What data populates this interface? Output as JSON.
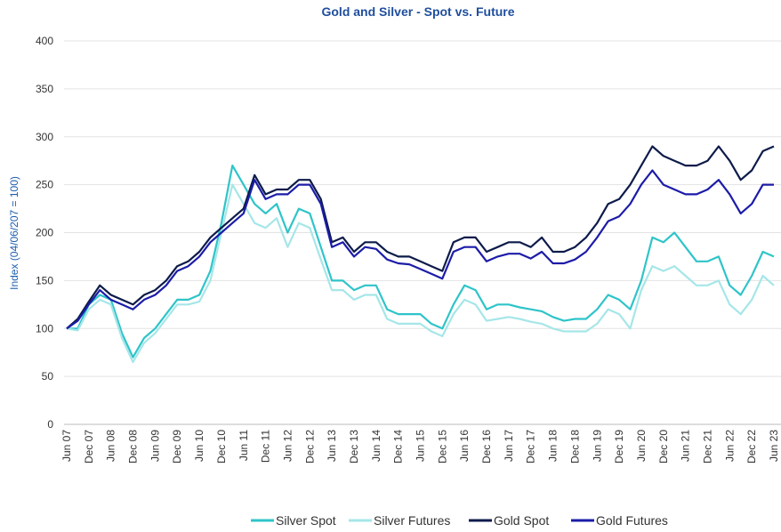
{
  "chart_data": {
    "type": "line",
    "title": "Gold and Silver  - Spot vs. Future",
    "y_label": "Index (04/06/207 = 100)",
    "categories": [
      "Jun 07",
      null,
      "Dec 07",
      null,
      "Jun 08",
      null,
      "Dec 08",
      null,
      "Jun 09",
      null,
      "Dec 09",
      null,
      "Jun 10",
      null,
      "Dec 10",
      null,
      "Jun 11",
      null,
      "Dec 11",
      null,
      "Jun 12",
      null,
      "Dec 12",
      null,
      "Jun 13",
      null,
      "Dec 13",
      null,
      "Jun 14",
      null,
      "Dec 14",
      null,
      "Jun 15",
      null,
      "Dec 15",
      null,
      "Jun 16",
      null,
      "Dec 16",
      null,
      "Jun 17",
      null,
      "Dec 17",
      null,
      "Jun 18",
      null,
      "Dec 18",
      null,
      "Jun 19",
      null,
      "Dec 19",
      null,
      "Jun 20",
      null,
      "Dec 20",
      null,
      "Jun 21",
      null,
      "Dec 21",
      null,
      "Jun 22",
      null,
      "Dec 22",
      null,
      "Jun 23"
    ],
    "series": [
      {
        "name": "Silver Spot",
        "color": "#2ec4c9",
        "values": [
          100,
          100,
          125,
          135,
          130,
          95,
          70,
          90,
          100,
          115,
          130,
          130,
          135,
          160,
          210,
          270,
          250,
          230,
          220,
          230,
          200,
          225,
          220,
          185,
          150,
          150,
          140,
          145,
          145,
          120,
          115,
          115,
          115,
          105,
          100,
          125,
          145,
          140,
          120,
          125,
          125,
          122,
          120,
          118,
          112,
          108,
          110,
          110,
          120,
          135,
          130,
          120,
          150,
          195,
          190,
          200,
          185,
          170,
          170,
          175,
          145,
          135,
          155,
          180,
          175
        ]
      },
      {
        "name": "Silver Futures",
        "color": "#a6e6e8",
        "values": [
          100,
          98,
          120,
          130,
          125,
          90,
          65,
          85,
          95,
          110,
          125,
          125,
          128,
          150,
          200,
          250,
          230,
          210,
          205,
          215,
          185,
          210,
          205,
          172,
          140,
          140,
          130,
          135,
          135,
          110,
          105,
          105,
          105,
          97,
          92,
          115,
          130,
          125,
          108,
          110,
          112,
          110,
          107,
          105,
          100,
          97,
          97,
          97,
          105,
          120,
          115,
          100,
          140,
          165,
          160,
          165,
          155,
          145,
          145,
          150,
          125,
          115,
          130,
          155,
          145
        ]
      },
      {
        "name": "Gold Spot",
        "color": "#0d1b4a",
        "values": [
          100,
          110,
          128,
          145,
          135,
          130,
          125,
          135,
          140,
          150,
          165,
          170,
          180,
          195,
          205,
          215,
          225,
          260,
          240,
          245,
          245,
          255,
          255,
          235,
          190,
          195,
          180,
          190,
          190,
          180,
          175,
          175,
          170,
          165,
          160,
          190,
          195,
          195,
          180,
          185,
          190,
          190,
          185,
          195,
          180,
          180,
          185,
          195,
          210,
          230,
          235,
          250,
          270,
          290,
          280,
          275,
          270,
          270,
          275,
          290,
          275,
          255,
          265,
          285,
          290
        ]
      },
      {
        "name": "Gold Futures",
        "color": "#1c1ca8",
        "values": [
          100,
          108,
          125,
          140,
          130,
          125,
          120,
          130,
          135,
          145,
          160,
          165,
          175,
          190,
          200,
          210,
          220,
          255,
          235,
          240,
          240,
          250,
          250,
          230,
          185,
          190,
          175,
          185,
          183,
          172,
          168,
          167,
          162,
          157,
          152,
          180,
          185,
          185,
          170,
          175,
          178,
          178,
          173,
          180,
          168,
          168,
          172,
          180,
          195,
          212,
          217,
          230,
          250,
          265,
          250,
          245,
          240,
          240,
          245,
          255,
          240,
          220,
          230,
          250,
          250
        ]
      }
    ],
    "ylim": [
      0,
      400
    ],
    "yticks": [
      0,
      50,
      100,
      150,
      200,
      250,
      300,
      350,
      400
    ],
    "grid": true,
    "legend": "bottom"
  }
}
